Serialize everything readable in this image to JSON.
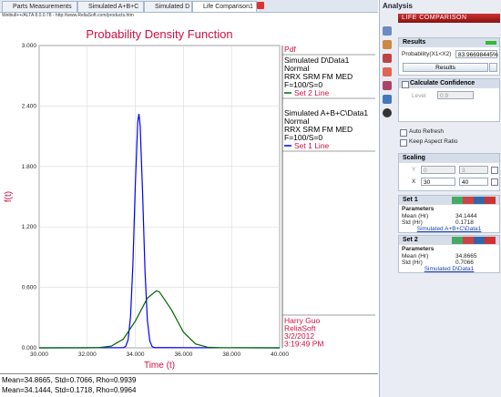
{
  "tabs": [
    "Parts Measurements",
    "Simulated A+B+C",
    "Simulated D",
    "Life Comparison1"
  ],
  "url": "Weibull++/ALTA 8.0.0.78 - http://www.ReliaSoft.com/products.htm",
  "chart_data": {
    "type": "line",
    "title": "Probability Density Function",
    "x_label": "Time (t)",
    "y_label": "f(t)",
    "xlim": [
      30,
      40
    ],
    "xticks": [
      {
        "value": 30,
        "label": "30.000"
      },
      {
        "value": 32,
        "label": "32.000"
      },
      {
        "value": 34,
        "label": "34.000"
      },
      {
        "value": 36,
        "label": "36.000"
      },
      {
        "value": 38,
        "label": "38.000"
      },
      {
        "value": 40,
        "label": "40.000"
      }
    ],
    "ylim": [
      0,
      3
    ],
    "yticks": [
      {
        "value": 0,
        "label": "0.000"
      },
      {
        "value": 0.6,
        "label": "0.600"
      },
      {
        "value": 1.2,
        "label": "1.200"
      },
      {
        "value": 1.8,
        "label": "1.800"
      },
      {
        "value": 2.4,
        "label": "2.400"
      },
      {
        "value": 3,
        "label": "3.000"
      }
    ],
    "grid": true,
    "series": [
      {
        "name": "Set 1 Line",
        "color": "#0000ff",
        "x": [
          30,
          33.5,
          33.6,
          33.7,
          33.8,
          33.9,
          34.0,
          34.1,
          34.15,
          34.2,
          34.3,
          34.4,
          34.5,
          34.6,
          34.7,
          34.8,
          40
        ],
        "values": [
          0,
          0.002,
          0.015,
          0.082,
          0.311,
          0.843,
          1.631,
          2.246,
          2.321,
          2.203,
          1.54,
          0.768,
          0.273,
          0.069,
          0.012,
          0.002,
          0
        ]
      },
      {
        "name": "Set 2 Line",
        "color": "#006400",
        "x": [
          30,
          32.0,
          32.5,
          33.0,
          33.5,
          34.0,
          34.5,
          34.87,
          35.0,
          35.5,
          36.0,
          36.5,
          37.0,
          37.5,
          40
        ],
        "values": [
          0,
          0,
          0.002,
          0.017,
          0.087,
          0.266,
          0.493,
          0.565,
          0.555,
          0.378,
          0.156,
          0.039,
          0.006,
          0.001,
          0
        ]
      }
    ],
    "legend_title": "Pdf",
    "legend_blocks": [
      [
        "Simulated D\\Data1",
        "Normal",
        "RRX SRM FM MED",
        "F=100/S=0"
      ],
      [
        "Simulated A+B+C\\Data1",
        "Normal",
        "RRX SRM FM MED",
        "F=100/S=0"
      ]
    ],
    "footer": [
      "Harry Guo",
      "ReliaSoft",
      "3/2/2012",
      "3:19:49 PM"
    ]
  },
  "status": [
    "Mean=34.8665, Std=0.7066, Rho=0.9939",
    "Mean=34.1444, Std=0.1718, Rho=0.9964"
  ],
  "panel": {
    "title": "Analysis",
    "header": "LIFE COMPARISON",
    "results": "Results",
    "prob_label": "Probability(X1<X2)",
    "prob_value": "83.96698445%",
    "results_button": "Results",
    "calc_confidence": "Calculate Confidence",
    "level_label": "Level",
    "level_value": "0.9",
    "auto_refresh": "Auto Refresh",
    "keep_aspect": "Keep Aspect Ratio",
    "scaling": "Scaling",
    "y_label": "Y",
    "y_min": "0",
    "y_max": "3",
    "x_label": "X",
    "x_min": "30",
    "x_max": "40",
    "sets": [
      {
        "title": "Set 1",
        "params": "Parameters",
        "mean_label": "Mean (Hr)",
        "mean": "34.1444",
        "std_label": "Std (Hr)",
        "std": "0.1718",
        "link": "Simulated A+B+C\\Data1"
      },
      {
        "title": "Set 2",
        "params": "Parameters",
        "mean_label": "Mean (Hr)",
        "mean": "34.8665",
        "std_label": "Std (Hr)",
        "std": "0.7066",
        "link": "Simulated D\\Data1"
      }
    ]
  }
}
